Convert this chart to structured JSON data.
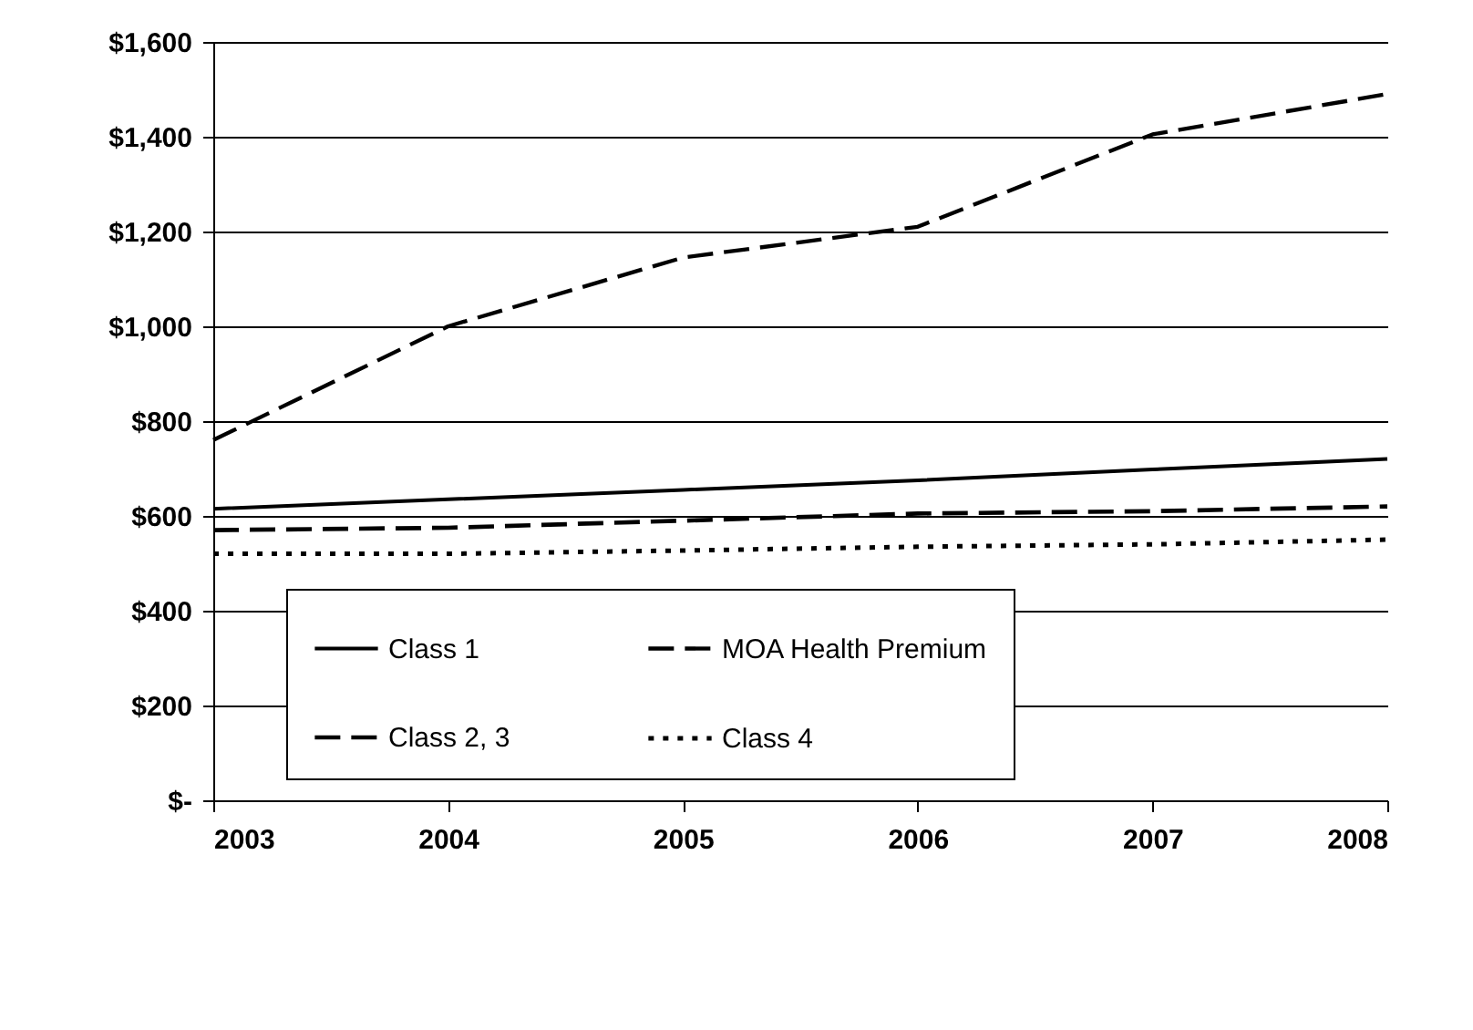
{
  "chart_data": {
    "type": "line",
    "x": [
      2003,
      2004,
      2005,
      2006,
      2007,
      2008
    ],
    "xlim": [
      2003,
      2008
    ],
    "xticks": [
      2003,
      2004,
      2005,
      2006,
      2007,
      2008
    ],
    "ylim": [
      0,
      1600
    ],
    "yticks": [
      {
        "value": 0,
        "label": "$-"
      },
      {
        "value": 200,
        "label": "$200"
      },
      {
        "value": 400,
        "label": "$400"
      },
      {
        "value": 600,
        "label": "$600"
      },
      {
        "value": 800,
        "label": "$800"
      },
      {
        "value": 1000,
        "label": "$1,000"
      },
      {
        "value": 1200,
        "label": "$1,200"
      },
      {
        "value": 1400,
        "label": "$1,400"
      },
      {
        "value": 1600,
        "label": "$1,600"
      }
    ],
    "grid": "y",
    "legend": "bottom",
    "series": [
      {
        "name": "Class 1",
        "color": "#000000",
        "line_style": "solid",
        "values": [
          615,
          635,
          655,
          675,
          698,
          720
        ]
      },
      {
        "name": "MOA Health Premium",
        "color": "#000000",
        "line_style": "dashed",
        "values": [
          760,
          1000,
          1145,
          1210,
          1405,
          1490
        ]
      },
      {
        "name": "Class 2, 3",
        "color": "#000000",
        "line_style": "dashed",
        "values": [
          570,
          575,
          590,
          605,
          610,
          620
        ]
      },
      {
        "name": "Class 4",
        "color": "#000000",
        "line_style": "dotted",
        "values": [
          520,
          520,
          527,
          535,
          540,
          550
        ]
      }
    ]
  }
}
